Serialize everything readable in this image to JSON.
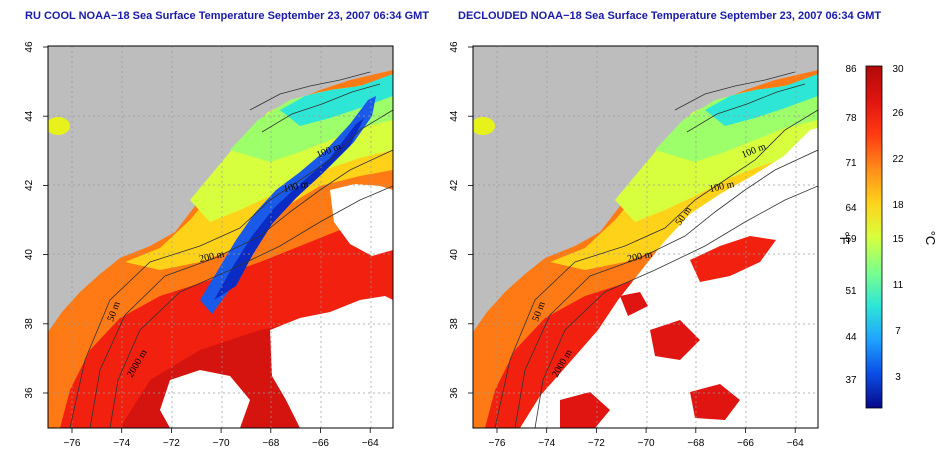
{
  "panels": [
    {
      "title": "RU COOL NOAA−18 Sea Surface Temperature September 23, 2007 06:34 GMT",
      "contour_labels": [
        "100 m",
        "100 m",
        "200 m",
        "50 m",
        "2000 m"
      ],
      "cloud_fill": "#ffffff"
    },
    {
      "title": "DECLOUDED NOAA−18 Sea Surface Temperature September 23, 2007 06:34 GMT",
      "contour_labels": [
        "100 m",
        "100 m",
        "50 m",
        "200 m",
        "50 m",
        "2000 m"
      ],
      "cloud_fill": "#ffffff"
    }
  ],
  "axes": {
    "x_ticks": [
      "−76",
      "−74",
      "−72",
      "−70",
      "−68",
      "−66",
      "−64"
    ],
    "y_ticks": [
      "36",
      "38",
      "40",
      "42",
      "44",
      "46"
    ]
  },
  "colorbar": {
    "f_ticks": [
      "86",
      "78",
      "71",
      "64",
      "59",
      "51",
      "44",
      "37"
    ],
    "c_ticks": [
      "30",
      "26",
      "22",
      "18",
      "15",
      "11",
      "7",
      "3"
    ],
    "f_unit": "°F",
    "c_unit": "°C",
    "colors": [
      "#08088a",
      "#0a4de6",
      "#1fa3ff",
      "#2ee6d6",
      "#7dff8a",
      "#d8ff3d",
      "#ffd21a",
      "#ff8c1a",
      "#ff3a12",
      "#e01410",
      "#b00a0a"
    ]
  },
  "colors": {
    "land": "#bdbdbd",
    "cloud": "#ffffff",
    "frame": "#000000",
    "title": "#1a1aa8"
  }
}
